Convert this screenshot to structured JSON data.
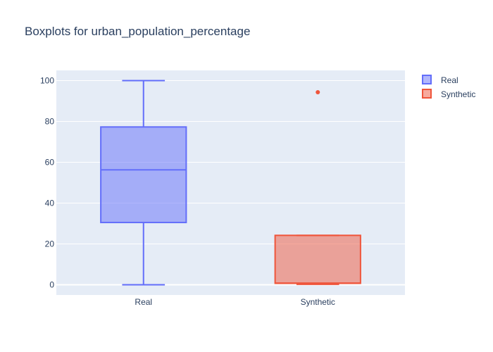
{
  "chart_data": {
    "type": "box",
    "title": "Boxplots for urban_population_percentage",
    "xlabel": "",
    "ylabel": "",
    "categories": [
      "Real",
      "Synthetic"
    ],
    "ylim": [
      -5,
      105
    ],
    "yticks": [
      0,
      20,
      40,
      60,
      80,
      100
    ],
    "grid": true,
    "legend_position": "top-right",
    "series": [
      {
        "name": "Real",
        "color": "#636efa",
        "fill": "rgba(99,110,250,0.5)",
        "min": 0,
        "q1": 30.5,
        "median": 56.3,
        "q3": 77.3,
        "max": 100,
        "outliers": []
      },
      {
        "name": "Synthetic",
        "color": "#ef553b",
        "fill": "rgba(239,85,59,0.5)",
        "min": 0.2,
        "q1": 0.7,
        "median": 0.8,
        "q3": 24.2,
        "max": 24.2,
        "outliers": [
          94.3
        ]
      }
    ]
  }
}
